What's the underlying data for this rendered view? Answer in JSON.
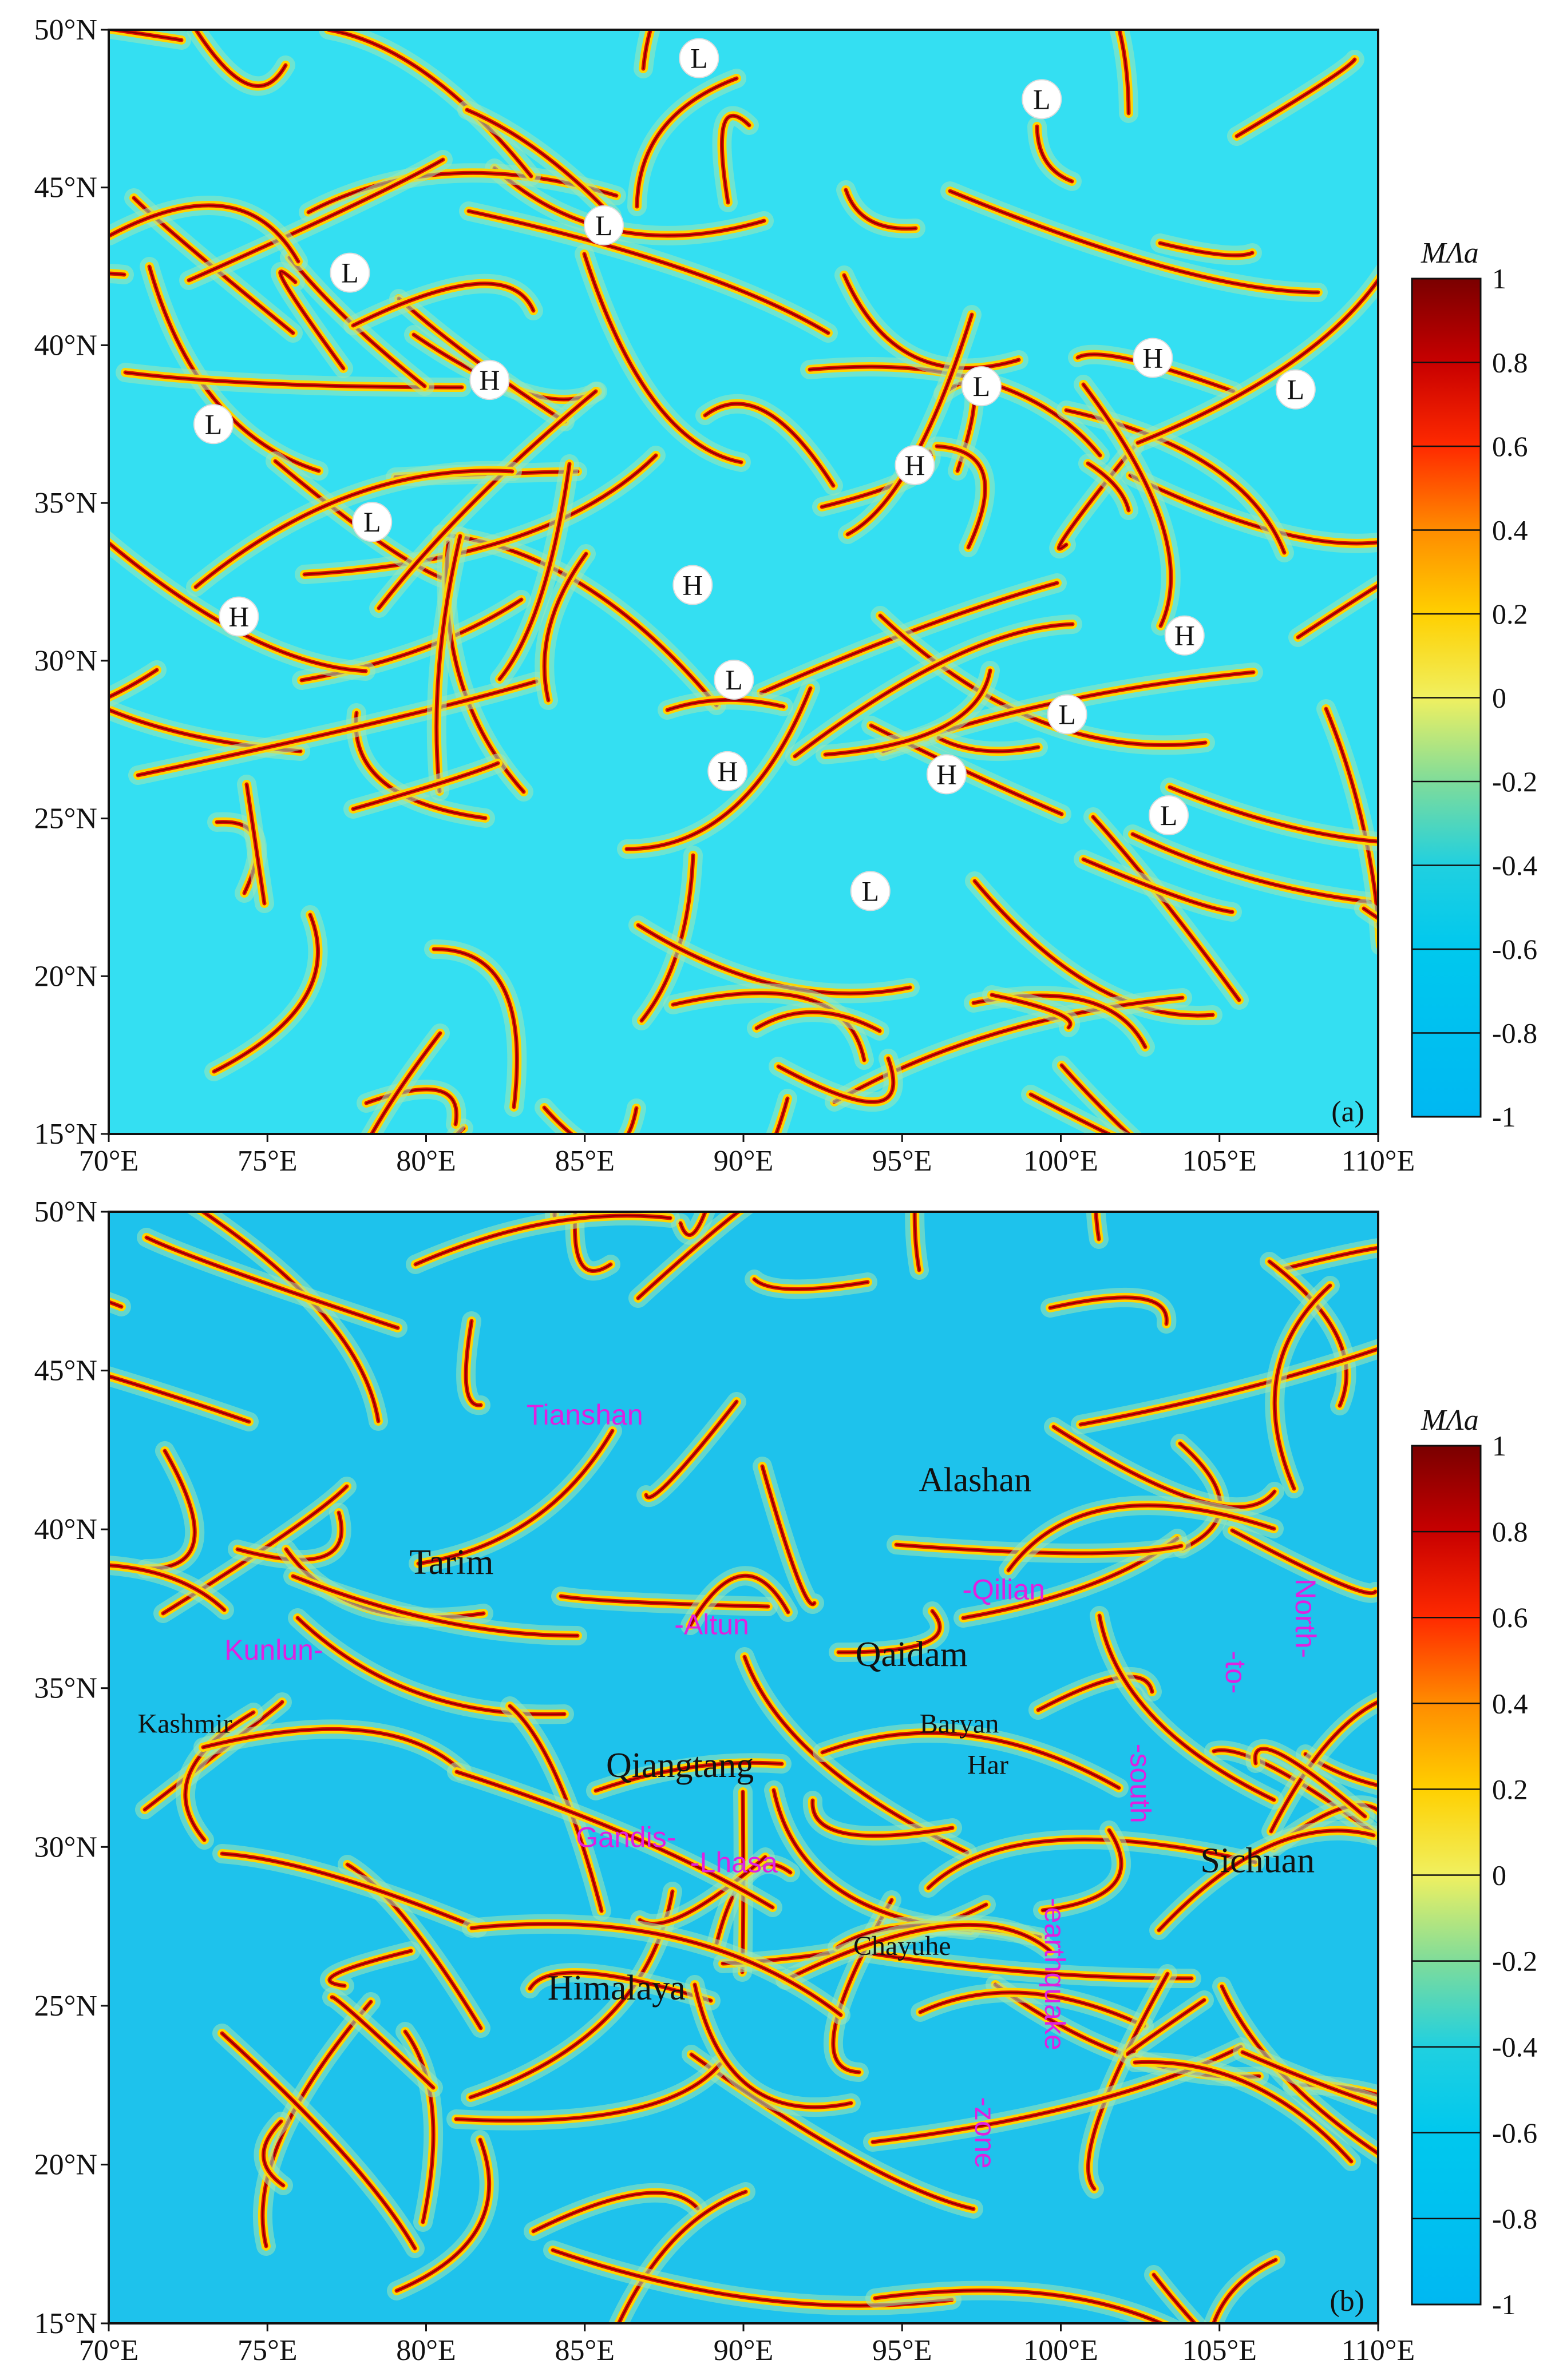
{
  "map": {
    "lon_range": [
      70,
      110
    ],
    "lat_range": [
      15,
      50
    ],
    "lon_ticks": [
      "70°E",
      "75°E",
      "80°E",
      "85°E",
      "90°E",
      "95°E",
      "100°E",
      "105°E",
      "110°E"
    ],
    "lat_ticks": [
      "50°N",
      "45°N",
      "40°N",
      "35°N",
      "30°N",
      "25°N",
      "20°N",
      "15°N"
    ],
    "colorbar": {
      "title": "MΛa",
      "labels": [
        "1",
        "0.8",
        "0.6",
        "0.4",
        "0.2",
        "0",
        "-0.2",
        "-0.4",
        "-0.6",
        "-0.8",
        "-1"
      ],
      "colors": [
        "#7a0000",
        "#c80000",
        "#ff2a00",
        "#ff8c00",
        "#ffd000",
        "#f0f060",
        "#7fdc9a",
        "#20d0e0",
        "#00c8ee",
        "#00c0f0",
        "#00b8f2"
      ]
    }
  },
  "panel_a": {
    "tag": "(a)",
    "background": "#34dff2",
    "markers": [
      {
        "label": "L",
        "lon": 88.6,
        "lat": 49.1
      },
      {
        "label": "L",
        "lon": 99.4,
        "lat": 47.8
      },
      {
        "label": "L",
        "lon": 85.6,
        "lat": 43.8
      },
      {
        "label": "L",
        "lon": 77.6,
        "lat": 42.3
      },
      {
        "label": "H",
        "lon": 82.0,
        "lat": 38.9
      },
      {
        "label": "L",
        "lon": 73.3,
        "lat": 37.5
      },
      {
        "label": "H",
        "lon": 102.9,
        "lat": 39.6
      },
      {
        "label": "L",
        "lon": 107.4,
        "lat": 38.6
      },
      {
        "label": "L",
        "lon": 97.5,
        "lat": 38.7
      },
      {
        "label": "H",
        "lon": 95.4,
        "lat": 36.2
      },
      {
        "label": "L",
        "lon": 78.3,
        "lat": 34.4
      },
      {
        "label": "H",
        "lon": 88.4,
        "lat": 32.4
      },
      {
        "label": "H",
        "lon": 74.1,
        "lat": 31.4
      },
      {
        "label": "H",
        "lon": 103.9,
        "lat": 30.8
      },
      {
        "label": "L",
        "lon": 89.7,
        "lat": 29.4
      },
      {
        "label": "L",
        "lon": 100.2,
        "lat": 28.3
      },
      {
        "label": "H",
        "lon": 89.5,
        "lat": 26.5
      },
      {
        "label": "H",
        "lon": 96.4,
        "lat": 26.4
      },
      {
        "label": "L",
        "lon": 103.4,
        "lat": 25.1
      },
      {
        "label": "L",
        "lon": 94.0,
        "lat": 22.7
      }
    ]
  },
  "panel_b": {
    "tag": "(b)",
    "background": "#1ec2ec",
    "regions_black": [
      {
        "text": "Alashan",
        "lon": 97.3,
        "lat": 41.2,
        "size": 60
      },
      {
        "text": "Tarim",
        "lon": 80.8,
        "lat": 38.6,
        "size": 62
      },
      {
        "text": "Qaidam",
        "lon": 95.3,
        "lat": 35.7,
        "size": 62
      },
      {
        "text": "Kashmir",
        "lon": 72.4,
        "lat": 33.6,
        "size": 48
      },
      {
        "text": "Baryan",
        "lon": 96.8,
        "lat": 33.6,
        "size": 48
      },
      {
        "text": "Har",
        "lon": 97.7,
        "lat": 32.3,
        "size": 48
      },
      {
        "text": "Qiangtang",
        "lon": 88.0,
        "lat": 32.2,
        "size": 62
      },
      {
        "text": "Sichuan",
        "lon": 106.2,
        "lat": 29.2,
        "size": 62
      },
      {
        "text": "Chayuhe",
        "lon": 95.0,
        "lat": 26.6,
        "size": 48
      },
      {
        "text": "Himalaya",
        "lon": 86.0,
        "lat": 25.2,
        "size": 62
      }
    ],
    "regions_magenta": [
      {
        "text": "Tianshan",
        "lon": 85.0,
        "lat": 43.3,
        "size": 50,
        "rotate": 0
      },
      {
        "text": "-Qilian",
        "lon": 98.2,
        "lat": 37.8,
        "size": 50,
        "rotate": 0
      },
      {
        "text": "-Altun",
        "lon": 89.0,
        "lat": 36.7,
        "size": 50,
        "rotate": 0
      },
      {
        "text": "Kunlun-",
        "lon": 75.2,
        "lat": 35.9,
        "size": 50,
        "rotate": 0
      },
      {
        "text": "Gandis-",
        "lon": 86.3,
        "lat": 30.0,
        "size": 50,
        "rotate": 0
      },
      {
        "text": "-Lhasa",
        "lon": 89.7,
        "lat": 29.2,
        "size": 50,
        "rotate": 0
      },
      {
        "text": "North-",
        "lon": 107.4,
        "lat": 37.2,
        "size": 50,
        "rotate": 90
      },
      {
        "text": "-to-",
        "lon": 105.2,
        "lat": 35.5,
        "size": 50,
        "rotate": 90
      },
      {
        "text": "-south",
        "lon": 102.2,
        "lat": 32.0,
        "size": 50,
        "rotate": 90
      },
      {
        "text": "-earthquake",
        "lon": 99.5,
        "lat": 26.0,
        "size": 50,
        "rotate": 90
      },
      {
        "text": "-zone",
        "lon": 97.3,
        "lat": 21.0,
        "size": 50,
        "rotate": 90
      }
    ]
  }
}
